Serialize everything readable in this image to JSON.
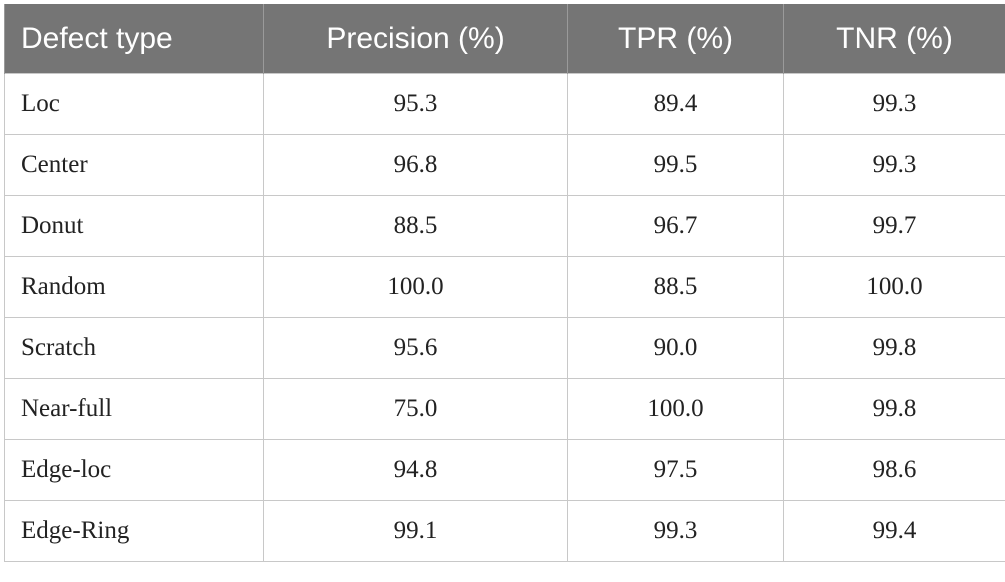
{
  "table": {
    "headers": [
      "Defect type",
      "Precision (%)",
      "TPR (%)",
      "TNR (%)"
    ],
    "rows": [
      [
        "Loc",
        "95.3",
        "89.4",
        "99.3"
      ],
      [
        "Center",
        "96.8",
        "99.5",
        "99.3"
      ],
      [
        "Donut",
        "88.5",
        "96.7",
        "99.7"
      ],
      [
        "Random",
        "100.0",
        "88.5",
        "100.0"
      ],
      [
        "Scratch",
        "95.6",
        "90.0",
        "99.8"
      ],
      [
        "Near-full",
        "75.0",
        "100.0",
        "99.8"
      ],
      [
        "Edge-loc",
        "94.8",
        "97.5",
        "98.6"
      ],
      [
        "Edge-Ring",
        "99.1",
        "99.3",
        "99.4"
      ]
    ]
  },
  "colors": {
    "header_bg": "#757575",
    "header_text": "#ffffff",
    "border": "#c8c8c8"
  }
}
